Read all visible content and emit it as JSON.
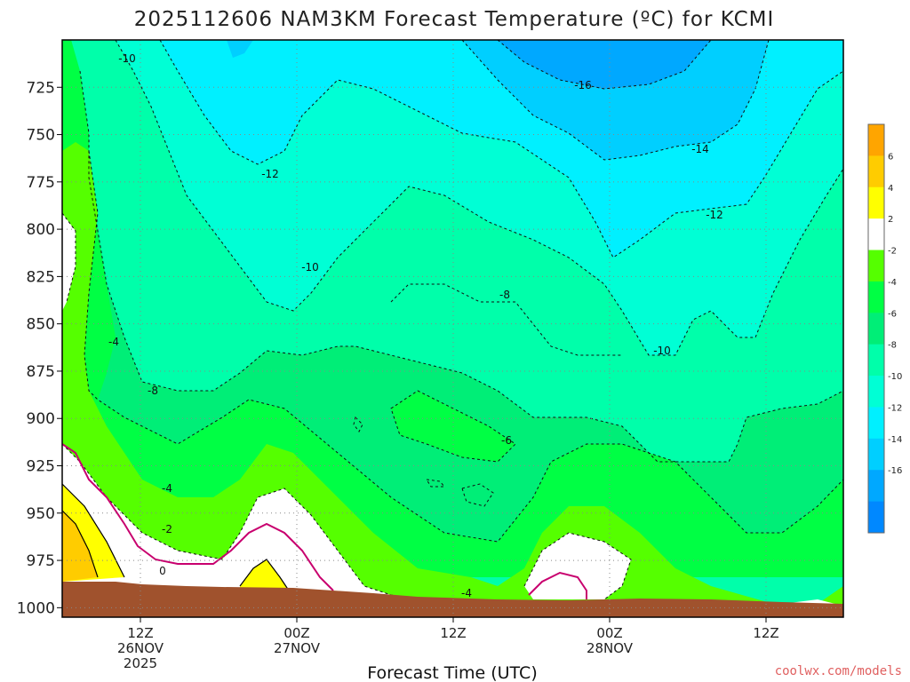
{
  "chart_data": {
    "type": "heatmap",
    "title": "2025112606 NAM3KM Forecast Temperature (ºC) for KCMI",
    "xlabel": "Forecast Time (UTC)",
    "ylabel": "",
    "y_scale": "pressure (hPa), inverted",
    "ylim": [
      1005,
      700
    ],
    "y_ticks": [
      725,
      750,
      775,
      800,
      825,
      850,
      875,
      900,
      925,
      950,
      975,
      1000
    ],
    "x_ticks": [
      {
        "line1": "12Z",
        "line2": "26NOV",
        "line3": "2025"
      },
      {
        "line1": "00Z",
        "line2": "27NOV",
        "line3": ""
      },
      {
        "line1": "12Z",
        "line2": "",
        "line3": ""
      },
      {
        "line1": "00Z",
        "line2": "28NOV",
        "line3": ""
      },
      {
        "line1": "12Z",
        "line2": "",
        "line3": ""
      }
    ],
    "grid": true,
    "colorbar": {
      "labels": [
        "6",
        "4",
        "2",
        "-2",
        "-4",
        "-6",
        "-8",
        "-10",
        "-12",
        "-14",
        "-16"
      ],
      "colors": [
        "#ffa500",
        "#ffcc00",
        "#ffff00",
        "#ffffff",
        "#55ff00",
        "#00ff44",
        "#00ee77",
        "#00ffaa",
        "#00ffd5",
        "#00f0ff",
        "#00cfff",
        "#00a8ff",
        "#0088ff"
      ]
    },
    "contour_labels": [
      "-16",
      "-14",
      "-12",
      "-12",
      "-10",
      "-10",
      "-10",
      "-8",
      "-8",
      "-6",
      "-4",
      "-4",
      "-4",
      "-2",
      "0"
    ],
    "colors": {
      "ground": "#a0522d",
      "zero_line": "#c8006e"
    }
  },
  "credit": "coolwx.com/models"
}
